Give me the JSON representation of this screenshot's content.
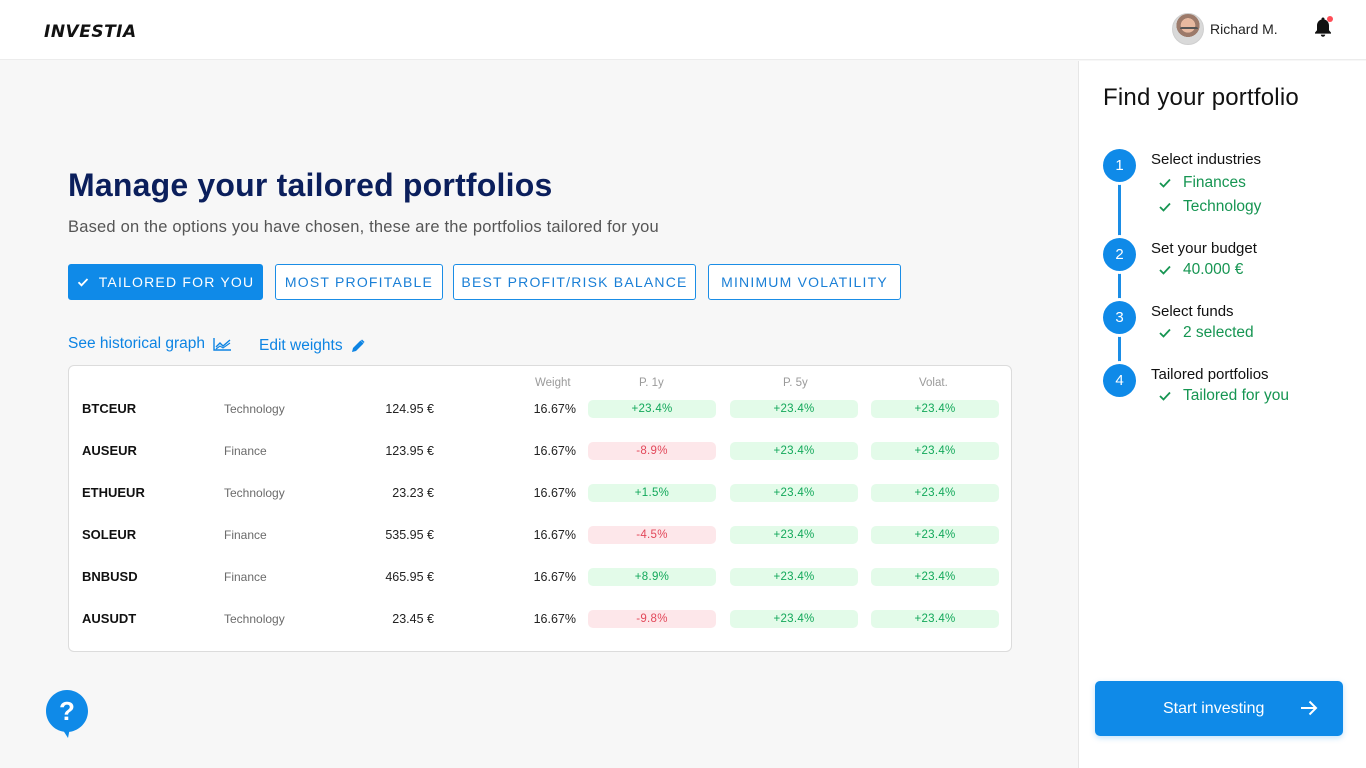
{
  "header": {
    "logo": "INVESTIA",
    "user_name": "Richard M.",
    "icons": {
      "bell": "bell-icon",
      "notification": "notification-dot"
    }
  },
  "main": {
    "title": "Manage your tailored portfolios",
    "subtitle": "Based on the options you have chosen, these are the portfolios tailored for you",
    "filters": [
      {
        "label": "TAILORED FOR YOU",
        "active": true
      },
      {
        "label": "MOST PROFITABLE",
        "active": false
      },
      {
        "label": "BEST PROFIT/RISK BALANCE",
        "active": false
      },
      {
        "label": "MINIMUM VOLATILITY",
        "active": false
      }
    ],
    "links": {
      "historical_graph": "See historical graph",
      "edit_weights": "Edit weights"
    },
    "table": {
      "headers": {
        "weight": "Weight",
        "p1y": "P. 1y",
        "p5y": "P. 5y",
        "volat": "Volat."
      },
      "rows": [
        {
          "symbol": "BTCEUR",
          "industry": "Technology",
          "price": "124.95 €",
          "weight": "16.67%",
          "p1y": "+23.4%",
          "p5y": "+23.4%",
          "volat": "+23.4%"
        },
        {
          "symbol": "AUSEUR",
          "industry": "Finance",
          "price": "123.95 €",
          "weight": "16.67%",
          "p1y": "-8.9%",
          "p5y": "+23.4%",
          "volat": "+23.4%"
        },
        {
          "symbol": "ETHUEUR",
          "industry": "Technology",
          "price": "23.23 €",
          "weight": "16.67%",
          "p1y": "+1.5%",
          "p5y": "+23.4%",
          "volat": "+23.4%"
        },
        {
          "symbol": "SOLEUR",
          "industry": "Finance",
          "price": "535.95 €",
          "weight": "16.67%",
          "p1y": "-4.5%",
          "p5y": "+23.4%",
          "volat": "+23.4%"
        },
        {
          "symbol": "BNBUSD",
          "industry": "Finance",
          "price": "465.95 €",
          "weight": "16.67%",
          "p1y": "+8.9%",
          "p5y": "+23.4%",
          "volat": "+23.4%"
        },
        {
          "symbol": "AUSUDT",
          "industry": "Technology",
          "price": "23.45 €",
          "weight": "16.67%",
          "p1y": "-9.8%",
          "p5y": "+23.4%",
          "volat": "+23.4%"
        }
      ]
    }
  },
  "panel": {
    "title": "Find your portfolio",
    "steps": [
      {
        "number": "1",
        "title": "Select industries",
        "items": [
          "Finances",
          "Technology"
        ]
      },
      {
        "number": "2",
        "title": "Set your budget",
        "items": [
          "40.000 €"
        ]
      },
      {
        "number": "3",
        "title": "Select funds",
        "items": [
          "2 selected"
        ]
      },
      {
        "number": "4",
        "title": "Tailored portfolios",
        "items": [
          "Tailored for you"
        ]
      }
    ],
    "cta_label": "Start investing"
  },
  "colors": {
    "accent": "#0f8ae8",
    "title_navy": "#0b1f5c",
    "positive": "#12a85a",
    "positive_bg": "#e3fbe9",
    "negative": "#e2485a",
    "negative_bg": "#fde7ea",
    "step_check": "#169552"
  }
}
